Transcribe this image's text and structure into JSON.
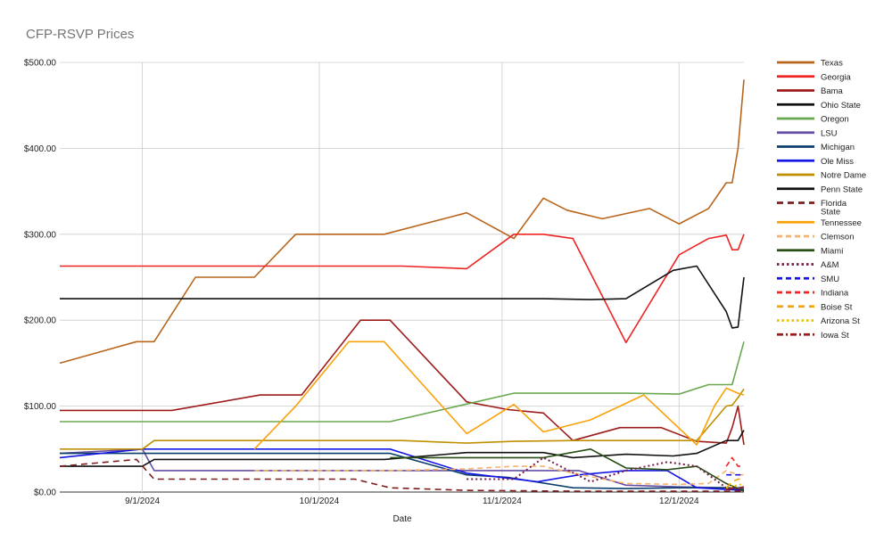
{
  "chart_data": {
    "type": "line",
    "title": "CFP-RSVP Prices",
    "xlabel": "Date",
    "ylabel": "",
    "ylim": [
      0,
      500
    ],
    "grid": true,
    "legend_position": "right",
    "x_axis": {
      "type": "date",
      "range": [
        "2024-08-18",
        "2024-12-12"
      ],
      "ticks": [
        "2024-09-01",
        "2024-10-01",
        "2024-11-01",
        "2024-12-01"
      ],
      "tick_labels": [
        "9/1/2024",
        "10/1/2024",
        "11/1/2024",
        "12/1/2024"
      ]
    },
    "y_ticks": [
      0,
      100,
      200,
      300,
      400,
      500
    ],
    "y_tick_labels": [
      "$0.00",
      "$100.00",
      "$200.00",
      "$300.00",
      "$400.00",
      "$500.00"
    ],
    "series": [
      {
        "name": "Texas",
        "color": "#b8651b",
        "dash": "solid",
        "points": [
          [
            "2024-08-18",
            150
          ],
          [
            "2024-08-31",
            175
          ],
          [
            "2024-09-03",
            175
          ],
          [
            "2024-09-10",
            250
          ],
          [
            "2024-09-20",
            250
          ],
          [
            "2024-09-27",
            300
          ],
          [
            "2024-10-06",
            300
          ],
          [
            "2024-10-12",
            300
          ],
          [
            "2024-10-26",
            325
          ],
          [
            "2024-11-03",
            295
          ],
          [
            "2024-11-08",
            342
          ],
          [
            "2024-11-12",
            328
          ],
          [
            "2024-11-18",
            318
          ],
          [
            "2024-11-26",
            330
          ],
          [
            "2024-12-01",
            312
          ],
          [
            "2024-12-06",
            330
          ],
          [
            "2024-12-09",
            360
          ],
          [
            "2024-12-10",
            360
          ],
          [
            "2024-12-11",
            400
          ],
          [
            "2024-12-12",
            480
          ]
        ]
      },
      {
        "name": "Georgia",
        "color": "#ee2424",
        "dash": "solid",
        "points": [
          [
            "2024-08-18",
            263
          ],
          [
            "2024-09-08",
            263
          ],
          [
            "2024-10-15",
            263
          ],
          [
            "2024-10-26",
            260
          ],
          [
            "2024-11-03",
            300
          ],
          [
            "2024-11-08",
            300
          ],
          [
            "2024-11-13",
            295
          ],
          [
            "2024-11-22",
            174
          ],
          [
            "2024-12-01",
            276
          ],
          [
            "2024-12-06",
            295
          ],
          [
            "2024-12-09",
            299
          ],
          [
            "2024-12-10",
            282
          ],
          [
            "2024-12-11",
            282
          ],
          [
            "2024-12-12",
            300
          ]
        ]
      },
      {
        "name": "Bama",
        "color": "#9e1b1b",
        "dash": "solid",
        "points": [
          [
            "2024-08-18",
            95
          ],
          [
            "2024-09-06",
            95
          ],
          [
            "2024-09-21",
            113
          ],
          [
            "2024-09-28",
            113
          ],
          [
            "2024-10-08",
            200
          ],
          [
            "2024-10-13",
            200
          ],
          [
            "2024-10-26",
            105
          ],
          [
            "2024-11-02",
            96
          ],
          [
            "2024-11-08",
            92
          ],
          [
            "2024-11-13",
            60
          ],
          [
            "2024-11-21",
            75
          ],
          [
            "2024-11-28",
            75
          ],
          [
            "2024-12-04",
            59
          ],
          [
            "2024-12-09",
            57
          ],
          [
            "2024-12-10",
            75
          ],
          [
            "2024-12-11",
            100
          ],
          [
            "2024-12-12",
            55
          ]
        ]
      },
      {
        "name": "Ohio State",
        "color": "#111111",
        "dash": "solid",
        "points": [
          [
            "2024-08-18",
            225
          ],
          [
            "2024-09-08",
            225
          ],
          [
            "2024-10-15",
            225
          ],
          [
            "2024-11-08",
            225
          ],
          [
            "2024-11-16",
            224
          ],
          [
            "2024-11-22",
            225
          ],
          [
            "2024-11-30",
            258
          ],
          [
            "2024-12-04",
            263
          ],
          [
            "2024-12-09",
            210
          ],
          [
            "2024-12-10",
            191
          ],
          [
            "2024-12-11",
            192
          ],
          [
            "2024-12-12",
            250
          ]
        ]
      },
      {
        "name": "Oregon",
        "color": "#6aa84f",
        "dash": "solid",
        "points": [
          [
            "2024-08-18",
            82
          ],
          [
            "2024-09-08",
            82
          ],
          [
            "2024-10-13",
            82
          ],
          [
            "2024-11-03",
            115
          ],
          [
            "2024-11-13",
            115
          ],
          [
            "2024-11-22",
            115
          ],
          [
            "2024-12-01",
            114
          ],
          [
            "2024-12-06",
            125
          ],
          [
            "2024-12-10",
            125
          ],
          [
            "2024-12-11",
            150
          ],
          [
            "2024-12-12",
            175
          ]
        ]
      },
      {
        "name": "LSU",
        "color": "#674ea7",
        "dash": "solid",
        "points": [
          [
            "2024-08-18",
            45
          ],
          [
            "2024-09-01",
            50
          ],
          [
            "2024-09-03",
            25
          ],
          [
            "2024-09-17",
            25
          ],
          [
            "2024-10-15",
            25
          ],
          [
            "2024-11-08",
            25
          ],
          [
            "2024-11-14",
            25
          ],
          [
            "2024-11-22",
            8
          ],
          [
            "2024-12-01",
            6
          ],
          [
            "2024-12-09",
            5
          ],
          [
            "2024-12-12",
            5
          ]
        ]
      },
      {
        "name": "Michigan",
        "color": "#0b3d6b",
        "dash": "solid",
        "points": [
          [
            "2024-08-18",
            45
          ],
          [
            "2024-09-08",
            45
          ],
          [
            "2024-10-13",
            45
          ],
          [
            "2024-10-26",
            20
          ],
          [
            "2024-11-02",
            17
          ],
          [
            "2024-11-13",
            5
          ],
          [
            "2024-11-22",
            4
          ],
          [
            "2024-12-01",
            5
          ],
          [
            "2024-12-09",
            5
          ],
          [
            "2024-12-12",
            3
          ]
        ]
      },
      {
        "name": "Ole Miss",
        "color": "#1515e6",
        "dash": "solid",
        "points": [
          [
            "2024-08-18",
            40
          ],
          [
            "2024-09-01",
            50
          ],
          [
            "2024-09-17",
            50
          ],
          [
            "2024-10-13",
            50
          ],
          [
            "2024-10-26",
            22
          ],
          [
            "2024-11-07",
            12
          ],
          [
            "2024-11-14",
            20
          ],
          [
            "2024-11-22",
            25
          ],
          [
            "2024-11-29",
            25
          ],
          [
            "2024-12-04",
            5
          ],
          [
            "2024-12-09",
            3
          ],
          [
            "2024-12-12",
            2
          ]
        ]
      },
      {
        "name": "Notre Dame",
        "color": "#bf9000",
        "dash": "solid",
        "points": [
          [
            "2024-08-18",
            50
          ],
          [
            "2024-09-01",
            50
          ],
          [
            "2024-09-03",
            60
          ],
          [
            "2024-09-24",
            60
          ],
          [
            "2024-10-15",
            60
          ],
          [
            "2024-10-26",
            57
          ],
          [
            "2024-11-03",
            59
          ],
          [
            "2024-11-13",
            60
          ],
          [
            "2024-11-22",
            60
          ],
          [
            "2024-12-04",
            60
          ],
          [
            "2024-12-09",
            100
          ],
          [
            "2024-12-10",
            101
          ],
          [
            "2024-12-11",
            110
          ],
          [
            "2024-12-12",
            120
          ]
        ]
      },
      {
        "name": "Penn State",
        "color": "#111111",
        "dash": "solid",
        "points": [
          [
            "2024-08-18",
            30
          ],
          [
            "2024-09-01",
            30
          ],
          [
            "2024-09-03",
            38
          ],
          [
            "2024-10-12",
            38
          ],
          [
            "2024-10-26",
            46
          ],
          [
            "2024-11-08",
            46
          ],
          [
            "2024-11-13",
            40
          ],
          [
            "2024-11-22",
            44
          ],
          [
            "2024-11-30",
            42
          ],
          [
            "2024-12-04",
            45
          ],
          [
            "2024-12-09",
            60
          ],
          [
            "2024-12-11",
            60
          ],
          [
            "2024-12-12",
            72
          ]
        ]
      },
      {
        "name": "Florida State",
        "color": "#7f1d1d",
        "dash": "longdash",
        "points": [
          [
            "2024-08-18",
            30
          ],
          [
            "2024-08-31",
            38
          ],
          [
            "2024-09-03",
            15
          ],
          [
            "2024-09-17",
            15
          ],
          [
            "2024-10-07",
            15
          ],
          [
            "2024-10-13",
            5
          ],
          [
            "2024-10-26",
            2
          ],
          [
            "2024-11-13",
            1
          ],
          [
            "2024-11-22",
            1
          ],
          [
            "2024-12-12",
            1
          ]
        ]
      },
      {
        "name": "Tennessee",
        "color": "#f9a20b",
        "dash": "solid",
        "points": [
          [
            "2024-09-20",
            50
          ],
          [
            "2024-09-27",
            100
          ],
          [
            "2024-10-06",
            175
          ],
          [
            "2024-10-12",
            175
          ],
          [
            "2024-10-26",
            68
          ],
          [
            "2024-11-03",
            102
          ],
          [
            "2024-11-08",
            70
          ],
          [
            "2024-11-16",
            84
          ],
          [
            "2024-11-25",
            113
          ],
          [
            "2024-12-04",
            55
          ],
          [
            "2024-12-07",
            100
          ],
          [
            "2024-12-09",
            121
          ],
          [
            "2024-12-11",
            115
          ],
          [
            "2024-12-12",
            113
          ]
        ]
      },
      {
        "name": "Clemson",
        "color": "#f6b26b",
        "dash": "dash",
        "points": [
          [
            "2024-09-20",
            25
          ],
          [
            "2024-10-13",
            25
          ],
          [
            "2024-10-26",
            27
          ],
          [
            "2024-11-03",
            30
          ],
          [
            "2024-11-08",
            30
          ],
          [
            "2024-11-13",
            22
          ],
          [
            "2024-11-22",
            10
          ],
          [
            "2024-12-01",
            9
          ],
          [
            "2024-12-06",
            10
          ],
          [
            "2024-12-09",
            25
          ],
          [
            "2024-12-11",
            20
          ],
          [
            "2024-12-12",
            20
          ]
        ]
      },
      {
        "name": "Miami",
        "color": "#274e13",
        "dash": "solid",
        "points": [
          [
            "2024-10-13",
            40
          ],
          [
            "2024-10-26",
            40
          ],
          [
            "2024-11-08",
            40
          ],
          [
            "2024-11-16",
            50
          ],
          [
            "2024-11-22",
            28
          ],
          [
            "2024-11-29",
            26
          ],
          [
            "2024-12-04",
            30
          ],
          [
            "2024-12-09",
            10
          ],
          [
            "2024-12-12",
            1
          ]
        ]
      },
      {
        "name": "A&M",
        "color": "#741b47",
        "dash": "dot",
        "points": [
          [
            "2024-10-26",
            15
          ],
          [
            "2024-11-03",
            15
          ],
          [
            "2024-11-08",
            40
          ],
          [
            "2024-11-16",
            12
          ],
          [
            "2024-11-22",
            25
          ],
          [
            "2024-11-29",
            35
          ],
          [
            "2024-12-04",
            30
          ],
          [
            "2024-12-09",
            5
          ],
          [
            "2024-12-12",
            3
          ]
        ]
      },
      {
        "name": "SMU",
        "color": "#1515e6",
        "dash": "dash",
        "points": [
          [
            "2024-12-09",
            20
          ],
          [
            "2024-12-11",
            20
          ],
          [
            "2024-12-12",
            20
          ]
        ]
      },
      {
        "name": "Indiana",
        "color": "#ee2424",
        "dash": "dash",
        "points": [
          [
            "2024-12-09",
            30
          ],
          [
            "2024-12-10",
            40
          ],
          [
            "2024-12-11",
            30
          ],
          [
            "2024-12-12",
            30
          ]
        ]
      },
      {
        "name": "Boise St",
        "color": "#f9a20b",
        "dash": "longdash",
        "points": [
          [
            "2024-12-09",
            5
          ],
          [
            "2024-12-10",
            12
          ],
          [
            "2024-12-11",
            15
          ],
          [
            "2024-12-12",
            15
          ]
        ]
      },
      {
        "name": "Arizona St",
        "color": "#e6c200",
        "dash": "dot",
        "points": [
          [
            "2024-12-09",
            5
          ],
          [
            "2024-12-11",
            8
          ],
          [
            "2024-12-12",
            10
          ]
        ]
      },
      {
        "name": "Iowa St",
        "color": "#9e1b1b",
        "dash": "dashdot",
        "points": [
          [
            "2024-12-09",
            3
          ],
          [
            "2024-12-11",
            5
          ],
          [
            "2024-12-12",
            6
          ]
        ]
      }
    ]
  }
}
